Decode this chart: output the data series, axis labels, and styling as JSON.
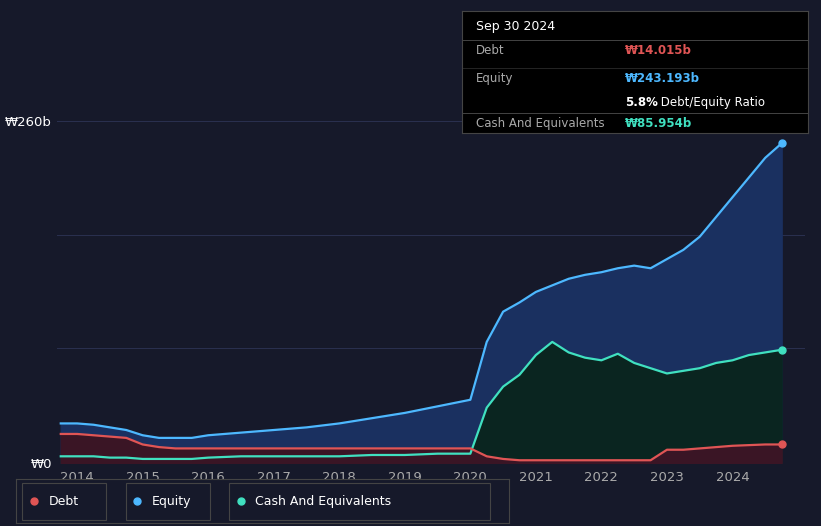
{
  "bg_color": "#16192a",
  "plot_bg_color": "#16192a",
  "ylabel_top": "₩260b",
  "ylabel_bottom": "₩0",
  "x_labels": [
    "2014",
    "2015",
    "2016",
    "2017",
    "2018",
    "2019",
    "2020",
    "2021",
    "2022",
    "2023",
    "2024"
  ],
  "grid_color": "#2a3050",
  "tooltip": {
    "date": "Sep 30 2024",
    "debt_label": "Debt",
    "debt_value": "₩14.015b",
    "debt_color": "#e05555",
    "equity_label": "Equity",
    "equity_value": "₩243.193b",
    "equity_color": "#4db8ff",
    "ratio_bold": "5.8%",
    "ratio_rest": " Debt/Equity Ratio",
    "cash_label": "Cash And Equivalents",
    "cash_value": "₩85.954b",
    "cash_color": "#40e0c0",
    "bg": "#000000",
    "text_color": "#aaaaaa",
    "border_color": "#444444"
  },
  "legend": [
    {
      "label": "Debt",
      "color": "#e05555"
    },
    {
      "label": "Equity",
      "color": "#4db8ff"
    },
    {
      "label": "Cash And Equivalents",
      "color": "#40e0c0"
    }
  ],
  "equity_line_color": "#4db8ff",
  "debt_line_color": "#e05555",
  "cash_line_color": "#40e0c0",
  "equity_fill_color": "#1a3060",
  "debt_fill_color": "#3a1525",
  "cash_fill_color": "#0a2520",
  "ylim": [
    0,
    260
  ],
  "xlim_start": 2013.7,
  "xlim_end": 2025.1,
  "equity_x": [
    2013.75,
    2014.0,
    2014.25,
    2014.5,
    2014.75,
    2015.0,
    2015.25,
    2015.5,
    2015.75,
    2016.0,
    2016.5,
    2017.0,
    2017.5,
    2018.0,
    2018.5,
    2019.0,
    2019.5,
    2020.0,
    2020.25,
    2020.5,
    2020.75,
    2021.0,
    2021.25,
    2021.5,
    2021.75,
    2022.0,
    2022.25,
    2022.5,
    2022.75,
    2023.0,
    2023.25,
    2023.5,
    2023.75,
    2024.0,
    2024.25,
    2024.5,
    2024.75
  ],
  "equity_y": [
    30,
    30,
    29,
    27,
    25,
    21,
    19,
    19,
    19,
    21,
    23,
    25,
    27,
    30,
    34,
    38,
    43,
    48,
    92,
    115,
    122,
    130,
    135,
    140,
    143,
    145,
    148,
    150,
    148,
    155,
    162,
    172,
    187,
    202,
    217,
    232,
    243
  ],
  "debt_x": [
    2013.75,
    2014.0,
    2014.25,
    2014.5,
    2014.75,
    2015.0,
    2015.25,
    2015.5,
    2015.75,
    2016.0,
    2016.5,
    2017.0,
    2017.5,
    2018.0,
    2018.5,
    2019.0,
    2019.5,
    2020.0,
    2020.25,
    2020.5,
    2020.75,
    2021.0,
    2021.5,
    2022.0,
    2022.5,
    2022.75,
    2023.0,
    2023.25,
    2023.5,
    2023.75,
    2024.0,
    2024.25,
    2024.5,
    2024.75
  ],
  "debt_y": [
    22,
    22,
    21,
    20,
    19,
    14,
    12,
    11,
    11,
    11,
    11,
    11,
    11,
    11,
    11,
    11,
    11,
    11,
    5,
    3,
    2,
    2,
    2,
    2,
    2,
    2,
    10,
    10,
    11,
    12,
    13,
    13.5,
    14,
    14
  ],
  "cash_x": [
    2013.75,
    2014.0,
    2014.25,
    2014.5,
    2014.75,
    2015.0,
    2015.25,
    2015.5,
    2015.75,
    2016.0,
    2016.5,
    2017.0,
    2017.5,
    2018.0,
    2018.5,
    2019.0,
    2019.5,
    2020.0,
    2020.25,
    2020.5,
    2020.75,
    2021.0,
    2021.25,
    2021.5,
    2021.75,
    2022.0,
    2022.25,
    2022.5,
    2022.75,
    2023.0,
    2023.25,
    2023.5,
    2023.75,
    2024.0,
    2024.25,
    2024.5,
    2024.75
  ],
  "cash_y": [
    5,
    5,
    5,
    4,
    4,
    3,
    3,
    3,
    3,
    4,
    5,
    5,
    5,
    5,
    6,
    6,
    7,
    7,
    42,
    58,
    67,
    82,
    92,
    84,
    80,
    78,
    83,
    76,
    72,
    68,
    70,
    72,
    76,
    78,
    82,
    84,
    86
  ]
}
